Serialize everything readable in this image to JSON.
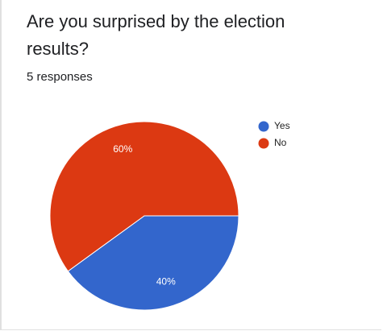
{
  "chart_data": {
    "type": "pie",
    "title": "Are you surprised by the election results?",
    "subtitle": "5 responses",
    "categories": [
      "Yes",
      "No"
    ],
    "values": [
      40,
      60
    ],
    "value_labels": [
      "40%",
      "60%"
    ],
    "colors": [
      "#3366cc",
      "#dc3912"
    ],
    "legend": "right"
  }
}
